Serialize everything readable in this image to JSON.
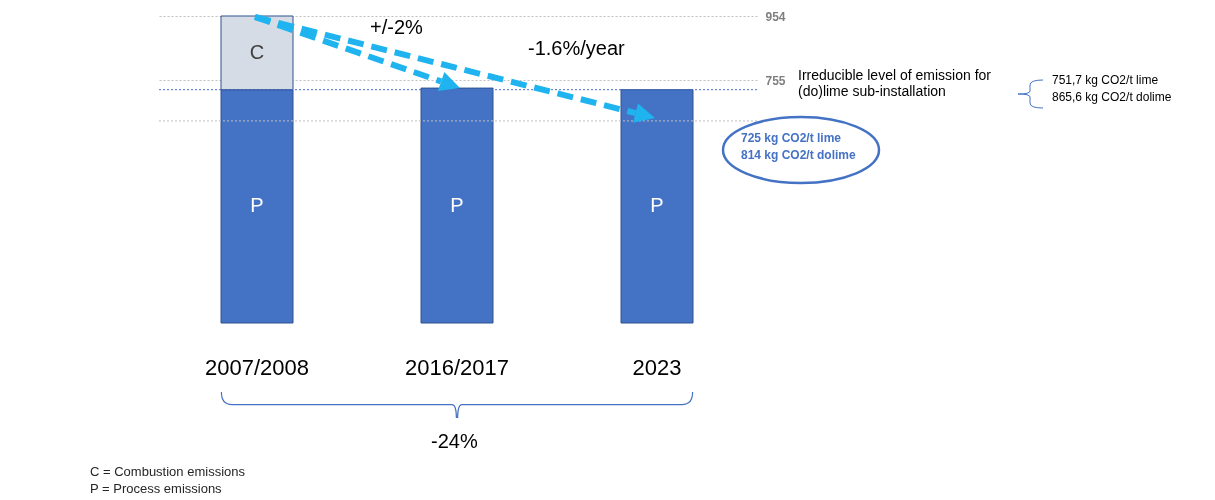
{
  "chart_data": {
    "type": "bar",
    "stacked": true,
    "grid": "y",
    "categories": [
      "2007/2008",
      "2016/2017",
      "2023"
    ],
    "ylim": [
      0,
      954
    ],
    "yticks": [
      954,
      755
    ],
    "series": [
      {
        "name": "P",
        "color": "#4472c4",
        "values": [
          725,
          730,
          725
        ]
      },
      {
        "name": "C",
        "color": "#d6dce5",
        "values": [
          229,
          null,
          null
        ]
      }
    ],
    "ref_lines": [
      {
        "axis": "y",
        "value": 725,
        "color": "#4472c4",
        "line_style": "dotted"
      },
      {
        "axis": "y",
        "value": 628,
        "color": "#bfbfbf",
        "line_style": "dotted"
      }
    ],
    "annotations": [
      "+/-2%",
      "-1.6%/year",
      "Irreducible level of emission for (do)lime sub-installation",
      "751,7 kg CO2/t lime",
      "865,6 kg CO2/t dolime",
      "725 kg CO2/t lime",
      "814 kg CO2/t dolime",
      "-24%",
      "C = Combustion emissions",
      "P = Process emissions"
    ]
  }
}
